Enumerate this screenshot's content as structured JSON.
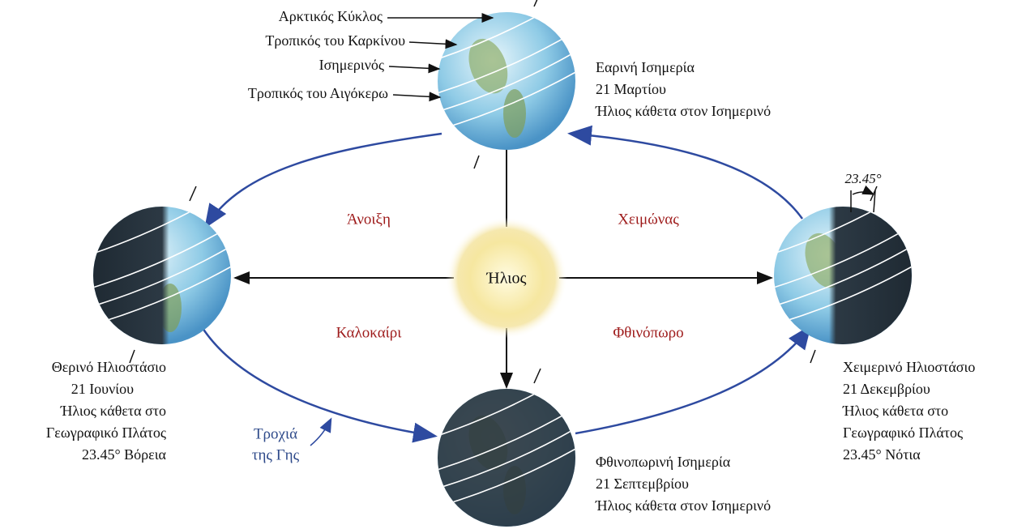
{
  "sun": "Ήλιος",
  "latitude_labels": [
    "Αρκτικός Κύκλος",
    "Τροπικός του Καρκίνου",
    "Ισημερινός",
    "Τροπικός του Αιγόκερω"
  ],
  "seasons": [
    "Άνοιξη",
    "Χειμώνας",
    "Καλοκαίρι",
    "Φθινόπωρο"
  ],
  "orbit_label": [
    "Τροχιά",
    "της Γης"
  ],
  "tilt_label": "23.45°",
  "positions": [
    {
      "lines": [
        "Εαρινή Ισημερία",
        "21 Μαρτίου",
        "Ήλιος κάθετα στον Ισημερινό"
      ]
    },
    {
      "lines": [
        "Θερινό Ηλιοστάσιο",
        "21 Ιουνίου",
        "Ήλιος κάθετα στο",
        "Γεωγραφικό Πλάτος",
        "23.45° Βόρεια"
      ]
    },
    {
      "lines": [
        "Χειμερινό Ηλιοστάσιο",
        "21 Δεκεμβρίου",
        "Ήλιος κάθετα στο",
        "Γεωγραφικό Πλάτος",
        "23.45° Νότια"
      ]
    },
    {
      "lines": [
        "Φθινοπωρινή Ισημερία",
        "21 Σεπτεμβρίου",
        "Ήλιος κάθετα στον Ισημερινό"
      ]
    }
  ]
}
